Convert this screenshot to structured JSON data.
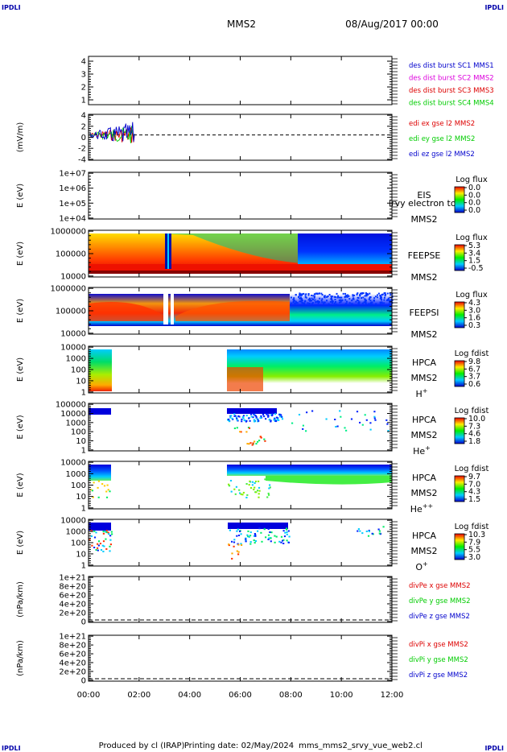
{
  "corner_label": "IPDLI",
  "header": {
    "spacecraft": "MMS2",
    "datetime": "08/Aug/2017 00:00"
  },
  "footer": {
    "produced_by": "Produced by cl (IRAP)",
    "printing_date": "Printing date: 02/May/2024",
    "program": "mms_mms2_srvy_vue_web2.cl"
  },
  "colors": {
    "red": "#dd0000",
    "green": "#00cc00",
    "blue": "#0000cc",
    "magenta": "#dd00dd"
  },
  "x_ticks": [
    "00:00",
    "02:00",
    "04:00",
    "06:00",
    "08:00",
    "10:00",
    "12:00"
  ],
  "chart_data": [
    {
      "id": "p1",
      "type": "line",
      "yticks": [
        "4",
        "3",
        "2",
        "1"
      ],
      "ylabel": "",
      "legend": [
        {
          "text": "des dist burst SC1 MMS1",
          "color": "#0000cc"
        },
        {
          "text": "des dist burst SC2 MMS2",
          "color": "#dd00dd"
        },
        {
          "text": "des dist burst SC3 MMS3",
          "color": "#dd0000"
        },
        {
          "text": "des dist burst SC4 MMS4",
          "color": "#00cc00"
        }
      ]
    },
    {
      "id": "p2",
      "type": "line",
      "yticks": [
        "4",
        "2",
        "0",
        "-2",
        "-4"
      ],
      "ylabel": "(mV/m)",
      "legend": [
        {
          "text": "edi ex gse l2 MMS2",
          "color": "#dd0000"
        },
        {
          "text": "edi ey gse l2 MMS2",
          "color": "#00cc00"
        },
        {
          "text": "edi ez gse l2 MMS2",
          "color": "#0000cc"
        }
      ]
    },
    {
      "id": "p3",
      "type": "heatmap",
      "yticks": [
        "1e+07",
        "1e+06",
        "1e+05",
        "1e+04"
      ],
      "ylabel": "E (eV)",
      "label_lines": [
        "EIS",
        "MMS2"
      ],
      "overlay": "lrvy electron to",
      "cbar_title": "Log flux",
      "cbar_ticks": [
        "0.0",
        "0.0",
        "0.0",
        "0.0"
      ]
    },
    {
      "id": "p4",
      "type": "heatmap",
      "yticks": [
        "1000000",
        "100000",
        "10000"
      ],
      "ylabel": "E (eV)",
      "label_lines": [
        "FEEPSE",
        "MMS2"
      ],
      "cbar_title": "Log flux",
      "cbar_ticks": [
        "5.3",
        "3.4",
        "1.5",
        "-0.5"
      ]
    },
    {
      "id": "p5",
      "type": "heatmap",
      "yticks": [
        "1000000",
        "100000",
        "10000"
      ],
      "ylabel": "E (eV)",
      "label_lines": [
        "FEEPSI",
        "MMS2"
      ],
      "cbar_title": "Log flux",
      "cbar_ticks": [
        "4.3",
        "3.0",
        "1.6",
        "0.3"
      ]
    },
    {
      "id": "p6",
      "type": "heatmap",
      "yticks": [
        "10000",
        "1000",
        "100",
        "10",
        "1"
      ],
      "ylabel": "E (eV)",
      "label_lines": [
        "HPCA",
        "MMS2"
      ],
      "species": "H",
      "species_sup": "+",
      "cbar_title": "Log fdist",
      "cbar_ticks": [
        "9.8",
        "6.7",
        "3.7",
        "0.6"
      ]
    },
    {
      "id": "p7",
      "type": "heatmap",
      "yticks": [
        "100000",
        "10000",
        "1000",
        "100",
        "10",
        "1"
      ],
      "ylabel": "E (eV)",
      "label_lines": [
        "HPCA",
        "MMS2"
      ],
      "species": "He",
      "species_sup": "+",
      "cbar_title": "Log fdist",
      "cbar_ticks": [
        "10.0",
        "7.3",
        "4.6",
        "1.8"
      ]
    },
    {
      "id": "p8",
      "type": "heatmap",
      "yticks": [
        "10000",
        "1000",
        "100",
        "10",
        "1"
      ],
      "ylabel": "E (eV)",
      "label_lines": [
        "HPCA",
        "MMS2"
      ],
      "species": "He",
      "species_sup": "++",
      "cbar_title": "Log fdist",
      "cbar_ticks": [
        "9.7",
        "7.0",
        "4.3",
        "1.5"
      ]
    },
    {
      "id": "p9",
      "type": "heatmap",
      "yticks": [
        "10000",
        "1000",
        "100",
        "10",
        "1"
      ],
      "ylabel": "E (eV)",
      "label_lines": [
        "HPCA",
        "MMS2"
      ],
      "species": "O",
      "species_sup": "+",
      "cbar_title": "Log fdist",
      "cbar_ticks": [
        "10.3",
        "7.9",
        "5.5",
        "3.0"
      ]
    },
    {
      "id": "p10",
      "type": "line",
      "yticks": [
        "1e+21",
        "8e+20",
        "6e+20",
        "4e+20",
        "2e+20",
        "0"
      ],
      "ylabel": "(nPa/km)",
      "legend": [
        {
          "text": "divPe x gse MMS2",
          "color": "#dd0000"
        },
        {
          "text": "divPe y gse MMS2",
          "color": "#00cc00"
        },
        {
          "text": "divPe z gse MMS2",
          "color": "#0000cc"
        }
      ]
    },
    {
      "id": "p11",
      "type": "line",
      "yticks": [
        "1e+21",
        "8e+20",
        "6e+20",
        "4e+20",
        "2e+20",
        "0"
      ],
      "ylabel": "(nPa/km)",
      "legend": [
        {
          "text": "divPi x gse MMS2",
          "color": "#dd0000"
        },
        {
          "text": "divPi y gse MMS2",
          "color": "#00cc00"
        },
        {
          "text": "divPi z gse MMS2",
          "color": "#0000cc"
        }
      ]
    }
  ]
}
